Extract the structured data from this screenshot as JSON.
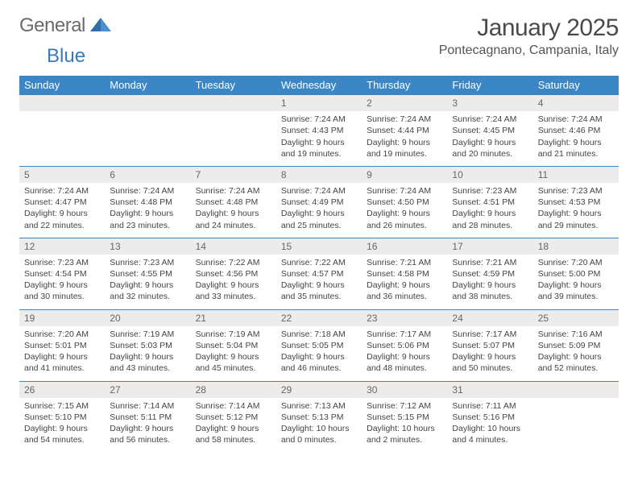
{
  "logo": {
    "text1": "General",
    "text2": "Blue"
  },
  "title": {
    "month": "January 2025",
    "location": "Pontecagnano, Campania, Italy"
  },
  "colors": {
    "header_bg": "#3b86c4",
    "header_text": "#ffffff",
    "daynum_bg": "#ececec",
    "daynum_text": "#666666",
    "row_border": "#3b86c4",
    "body_text": "#444444",
    "logo_general": "#6b6b6b",
    "logo_blue": "#3a7ab8",
    "title_color": "#4a4a4a",
    "location_color": "#555555",
    "page_bg": "#ffffff"
  },
  "weekdays": [
    "Sunday",
    "Monday",
    "Tuesday",
    "Wednesday",
    "Thursday",
    "Friday",
    "Saturday"
  ],
  "weeks": [
    [
      null,
      null,
      null,
      {
        "n": "1",
        "sunrise": "Sunrise: 7:24 AM",
        "sunset": "Sunset: 4:43 PM",
        "day1": "Daylight: 9 hours",
        "day2": "and 19 minutes."
      },
      {
        "n": "2",
        "sunrise": "Sunrise: 7:24 AM",
        "sunset": "Sunset: 4:44 PM",
        "day1": "Daylight: 9 hours",
        "day2": "and 19 minutes."
      },
      {
        "n": "3",
        "sunrise": "Sunrise: 7:24 AM",
        "sunset": "Sunset: 4:45 PM",
        "day1": "Daylight: 9 hours",
        "day2": "and 20 minutes."
      },
      {
        "n": "4",
        "sunrise": "Sunrise: 7:24 AM",
        "sunset": "Sunset: 4:46 PM",
        "day1": "Daylight: 9 hours",
        "day2": "and 21 minutes."
      }
    ],
    [
      {
        "n": "5",
        "sunrise": "Sunrise: 7:24 AM",
        "sunset": "Sunset: 4:47 PM",
        "day1": "Daylight: 9 hours",
        "day2": "and 22 minutes."
      },
      {
        "n": "6",
        "sunrise": "Sunrise: 7:24 AM",
        "sunset": "Sunset: 4:48 PM",
        "day1": "Daylight: 9 hours",
        "day2": "and 23 minutes."
      },
      {
        "n": "7",
        "sunrise": "Sunrise: 7:24 AM",
        "sunset": "Sunset: 4:48 PM",
        "day1": "Daylight: 9 hours",
        "day2": "and 24 minutes."
      },
      {
        "n": "8",
        "sunrise": "Sunrise: 7:24 AM",
        "sunset": "Sunset: 4:49 PM",
        "day1": "Daylight: 9 hours",
        "day2": "and 25 minutes."
      },
      {
        "n": "9",
        "sunrise": "Sunrise: 7:24 AM",
        "sunset": "Sunset: 4:50 PM",
        "day1": "Daylight: 9 hours",
        "day2": "and 26 minutes."
      },
      {
        "n": "10",
        "sunrise": "Sunrise: 7:23 AM",
        "sunset": "Sunset: 4:51 PM",
        "day1": "Daylight: 9 hours",
        "day2": "and 28 minutes."
      },
      {
        "n": "11",
        "sunrise": "Sunrise: 7:23 AM",
        "sunset": "Sunset: 4:53 PM",
        "day1": "Daylight: 9 hours",
        "day2": "and 29 minutes."
      }
    ],
    [
      {
        "n": "12",
        "sunrise": "Sunrise: 7:23 AM",
        "sunset": "Sunset: 4:54 PM",
        "day1": "Daylight: 9 hours",
        "day2": "and 30 minutes."
      },
      {
        "n": "13",
        "sunrise": "Sunrise: 7:23 AM",
        "sunset": "Sunset: 4:55 PM",
        "day1": "Daylight: 9 hours",
        "day2": "and 32 minutes."
      },
      {
        "n": "14",
        "sunrise": "Sunrise: 7:22 AM",
        "sunset": "Sunset: 4:56 PM",
        "day1": "Daylight: 9 hours",
        "day2": "and 33 minutes."
      },
      {
        "n": "15",
        "sunrise": "Sunrise: 7:22 AM",
        "sunset": "Sunset: 4:57 PM",
        "day1": "Daylight: 9 hours",
        "day2": "and 35 minutes."
      },
      {
        "n": "16",
        "sunrise": "Sunrise: 7:21 AM",
        "sunset": "Sunset: 4:58 PM",
        "day1": "Daylight: 9 hours",
        "day2": "and 36 minutes."
      },
      {
        "n": "17",
        "sunrise": "Sunrise: 7:21 AM",
        "sunset": "Sunset: 4:59 PM",
        "day1": "Daylight: 9 hours",
        "day2": "and 38 minutes."
      },
      {
        "n": "18",
        "sunrise": "Sunrise: 7:20 AM",
        "sunset": "Sunset: 5:00 PM",
        "day1": "Daylight: 9 hours",
        "day2": "and 39 minutes."
      }
    ],
    [
      {
        "n": "19",
        "sunrise": "Sunrise: 7:20 AM",
        "sunset": "Sunset: 5:01 PM",
        "day1": "Daylight: 9 hours",
        "day2": "and 41 minutes."
      },
      {
        "n": "20",
        "sunrise": "Sunrise: 7:19 AM",
        "sunset": "Sunset: 5:03 PM",
        "day1": "Daylight: 9 hours",
        "day2": "and 43 minutes."
      },
      {
        "n": "21",
        "sunrise": "Sunrise: 7:19 AM",
        "sunset": "Sunset: 5:04 PM",
        "day1": "Daylight: 9 hours",
        "day2": "and 45 minutes."
      },
      {
        "n": "22",
        "sunrise": "Sunrise: 7:18 AM",
        "sunset": "Sunset: 5:05 PM",
        "day1": "Daylight: 9 hours",
        "day2": "and 46 minutes."
      },
      {
        "n": "23",
        "sunrise": "Sunrise: 7:17 AM",
        "sunset": "Sunset: 5:06 PM",
        "day1": "Daylight: 9 hours",
        "day2": "and 48 minutes."
      },
      {
        "n": "24",
        "sunrise": "Sunrise: 7:17 AM",
        "sunset": "Sunset: 5:07 PM",
        "day1": "Daylight: 9 hours",
        "day2": "and 50 minutes."
      },
      {
        "n": "25",
        "sunrise": "Sunrise: 7:16 AM",
        "sunset": "Sunset: 5:09 PM",
        "day1": "Daylight: 9 hours",
        "day2": "and 52 minutes."
      }
    ],
    [
      {
        "n": "26",
        "sunrise": "Sunrise: 7:15 AM",
        "sunset": "Sunset: 5:10 PM",
        "day1": "Daylight: 9 hours",
        "day2": "and 54 minutes."
      },
      {
        "n": "27",
        "sunrise": "Sunrise: 7:14 AM",
        "sunset": "Sunset: 5:11 PM",
        "day1": "Daylight: 9 hours",
        "day2": "and 56 minutes."
      },
      {
        "n": "28",
        "sunrise": "Sunrise: 7:14 AM",
        "sunset": "Sunset: 5:12 PM",
        "day1": "Daylight: 9 hours",
        "day2": "and 58 minutes."
      },
      {
        "n": "29",
        "sunrise": "Sunrise: 7:13 AM",
        "sunset": "Sunset: 5:13 PM",
        "day1": "Daylight: 10 hours",
        "day2": "and 0 minutes."
      },
      {
        "n": "30",
        "sunrise": "Sunrise: 7:12 AM",
        "sunset": "Sunset: 5:15 PM",
        "day1": "Daylight: 10 hours",
        "day2": "and 2 minutes."
      },
      {
        "n": "31",
        "sunrise": "Sunrise: 7:11 AM",
        "sunset": "Sunset: 5:16 PM",
        "day1": "Daylight: 10 hours",
        "day2": "and 4 minutes."
      },
      null
    ]
  ]
}
